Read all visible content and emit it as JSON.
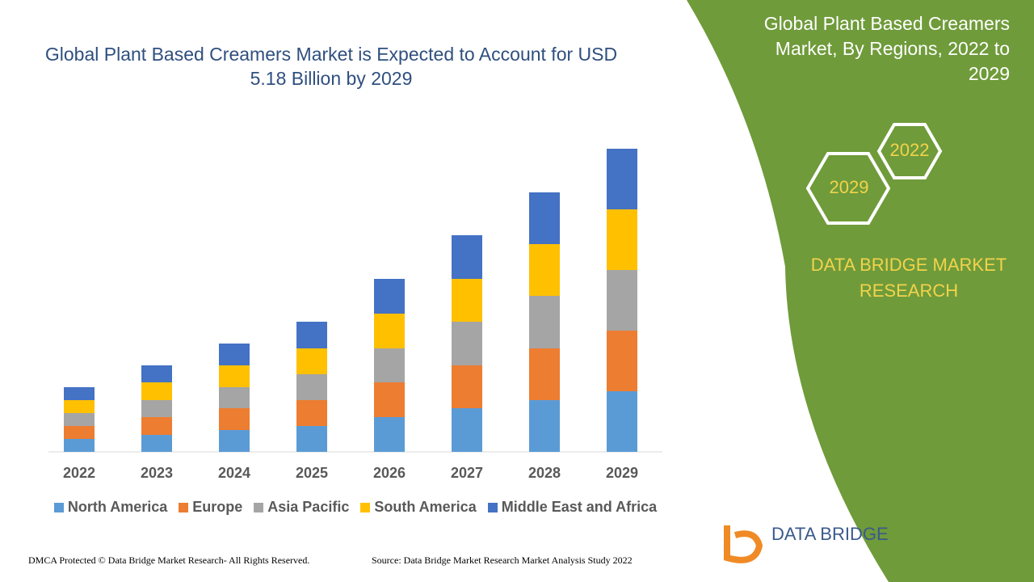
{
  "chart_data": {
    "type": "stacked-bar",
    "title": "Global Plant Based Creamers Market is Expected to Account for USD 5.18 Billion by 2029",
    "categories": [
      "2022",
      "2023",
      "2024",
      "2025",
      "2026",
      "2027",
      "2028",
      "2029"
    ],
    "series": [
      {
        "name": "North America",
        "color": "#5b9bd5",
        "values": [
          16,
          21,
          27,
          32,
          43,
          54,
          64,
          75
        ]
      },
      {
        "name": "Europe",
        "color": "#ed7d31",
        "values": [
          16,
          22,
          27,
          32,
          43,
          53,
          64,
          75
        ]
      },
      {
        "name": "Asia Pacific",
        "color": "#a5a5a5",
        "values": [
          16,
          21,
          26,
          32,
          42,
          54,
          65,
          75
        ]
      },
      {
        "name": "South America",
        "color": "#ffc000",
        "values": [
          16,
          22,
          27,
          32,
          43,
          53,
          64,
          75
        ]
      },
      {
        "name": "Middle East and Africa",
        "color": "#4472c4",
        "values": [
          16,
          21,
          27,
          33,
          43,
          54,
          64,
          75
        ]
      }
    ],
    "ylim": [
      0,
      375
    ],
    "legend": "bottom"
  },
  "panel": {
    "title": "Global Plant Based Creamers Market, By Regions, 2022 to 2029",
    "hex_years": [
      "2022",
      "2029"
    ],
    "brand": "DATA BRIDGE MARKET RESEARCH",
    "logo": "DATA BRIDGE"
  },
  "footer": {
    "left": "DMCA Protected © Data Bridge Market Research- All Rights Reserved.",
    "right": "Source: Data Bridge Market Research Market Analysis Study 2022"
  }
}
